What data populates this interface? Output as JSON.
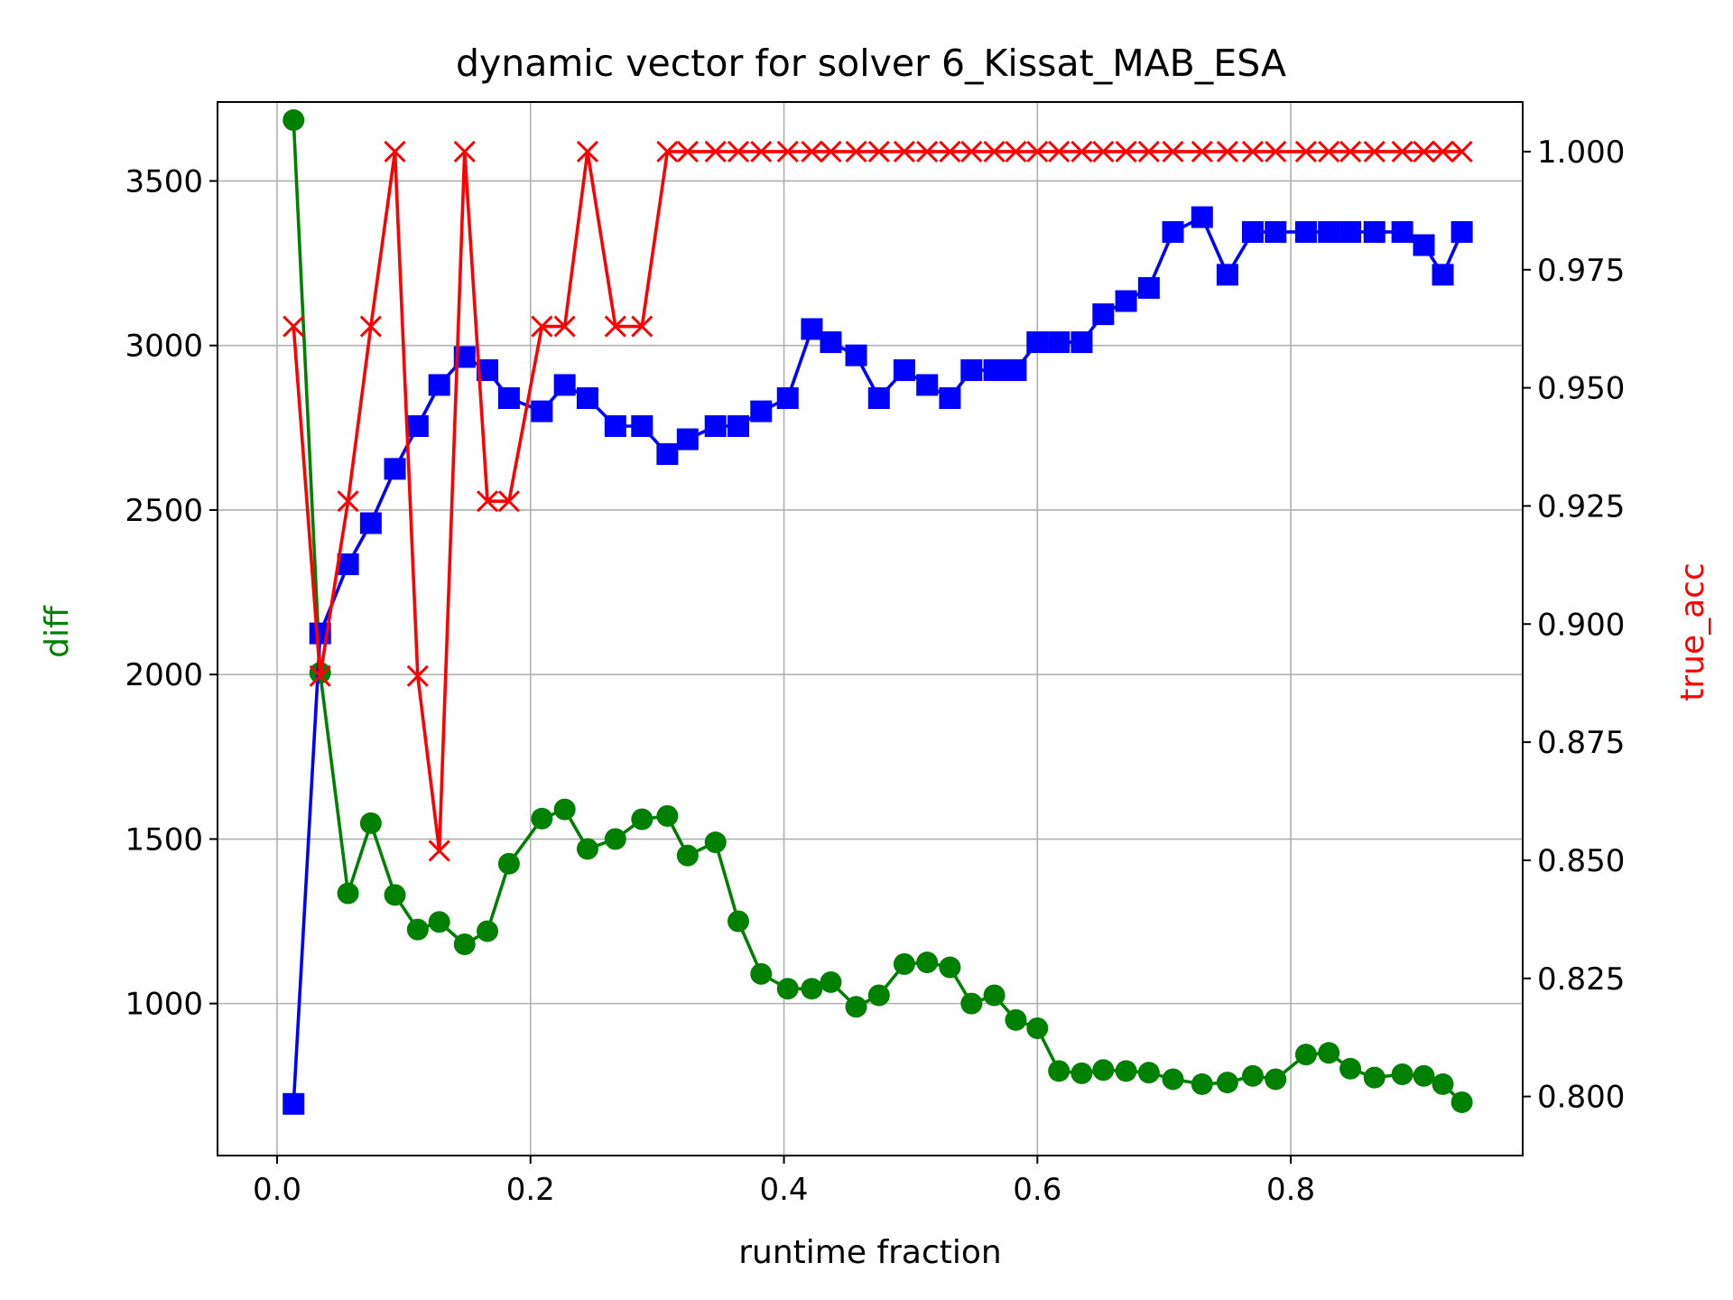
{
  "chart_data": {
    "type": "line",
    "title": "dynamic vector for solver 6_Kissat_MAB_ESA",
    "xlabel": "runtime fraction",
    "ylabel_left": "diff",
    "ylabel_right": "true_acc",
    "xlim": [
      -0.047,
      0.983
    ],
    "ylim_left": [
      538,
      3740
    ],
    "ylim_right": [
      0.7875,
      1.0105
    ],
    "x_ticks": [
      0.0,
      0.2,
      0.4,
      0.6,
      0.8
    ],
    "x_tick_labels": [
      "0.0",
      "0.2",
      "0.4",
      "0.6",
      "0.8"
    ],
    "y_left_ticks": [
      1000,
      1500,
      2000,
      2500,
      3000,
      3500
    ],
    "y_left_tick_labels": [
      "1000",
      "1500",
      "2000",
      "2500",
      "3000",
      "3500"
    ],
    "y_right_ticks": [
      0.8,
      0.825,
      0.85,
      0.875,
      0.9,
      0.925,
      0.95,
      0.975,
      1.0
    ],
    "y_right_tick_labels": [
      "0.800",
      "0.825",
      "0.850",
      "0.875",
      "0.900",
      "0.925",
      "0.950",
      "0.975",
      "1.000"
    ],
    "grid": true,
    "colors": {
      "green": "#008000",
      "blue": "#0000ff",
      "red": "#ff0000",
      "grid": "#b0b0b0"
    },
    "series": [
      {
        "axis": "left",
        "color": "#008000",
        "marker": "circle",
        "x": [
          0.013,
          0.034,
          0.056,
          0.074,
          0.093,
          0.111,
          0.128,
          0.148,
          0.166,
          0.183,
          0.209,
          0.227,
          0.245,
          0.267,
          0.288,
          0.308,
          0.324,
          0.346,
          0.364,
          0.382,
          0.403,
          0.422,
          0.437,
          0.457,
          0.475,
          0.495,
          0.513,
          0.531,
          0.548,
          0.566,
          0.583,
          0.6,
          0.617,
          0.635,
          0.652,
          0.67,
          0.688,
          0.707,
          0.73,
          0.75,
          0.77,
          0.788,
          0.812,
          0.83,
          0.847,
          0.866,
          0.888,
          0.905,
          0.92,
          0.935
        ],
        "y": [
          3685,
          2005,
          1335,
          1548,
          1330,
          1225,
          1248,
          1180,
          1220,
          1425,
          1562,
          1590,
          1470,
          1500,
          1560,
          1570,
          1450,
          1490,
          1250,
          1090,
          1045,
          1045,
          1065,
          990,
          1025,
          1120,
          1125,
          1110,
          1000,
          1025,
          950,
          925,
          795,
          788,
          798,
          795,
          790,
          770,
          755,
          760,
          780,
          770,
          845,
          850,
          802,
          775,
          785,
          780,
          755,
          700
        ]
      },
      {
        "axis": "left",
        "color": "#0000ff",
        "marker": "square",
        "x": [
          0.013,
          0.034,
          0.056,
          0.074,
          0.093,
          0.111,
          0.128,
          0.148,
          0.166,
          0.183,
          0.209,
          0.227,
          0.245,
          0.267,
          0.288,
          0.308,
          0.324,
          0.346,
          0.364,
          0.382,
          0.403,
          0.422,
          0.437,
          0.457,
          0.475,
          0.495,
          0.513,
          0.531,
          0.548,
          0.566,
          0.583,
          0.6,
          0.617,
          0.635,
          0.652,
          0.67,
          0.688,
          0.707,
          0.73,
          0.75,
          0.77,
          0.788,
          0.812,
          0.83,
          0.847,
          0.866,
          0.888,
          0.905,
          0.92,
          0.935
        ],
        "y": [
          695,
          2125,
          2335,
          2460,
          2625,
          2755,
          2880,
          2965,
          2925,
          2840,
          2800,
          2880,
          2840,
          2755,
          2755,
          2670,
          2715,
          2755,
          2755,
          2800,
          2840,
          3050,
          3010,
          2970,
          2840,
          2925,
          2880,
          2840,
          2925,
          2925,
          2925,
          3010,
          3010,
          3010,
          3095,
          3135,
          3175,
          3345,
          3390,
          3215,
          3345,
          3345,
          3345,
          3345,
          3345,
          3345,
          3345,
          3305,
          3215,
          3345
        ]
      },
      {
        "axis": "right",
        "color": "#ff0000",
        "marker": "x",
        "x": [
          0.013,
          0.034,
          0.056,
          0.074,
          0.093,
          0.111,
          0.128,
          0.148,
          0.166,
          0.183,
          0.209,
          0.227,
          0.245,
          0.267,
          0.288,
          0.308,
          0.324,
          0.346,
          0.364,
          0.382,
          0.403,
          0.422,
          0.437,
          0.457,
          0.475,
          0.495,
          0.513,
          0.531,
          0.548,
          0.566,
          0.583,
          0.6,
          0.617,
          0.635,
          0.652,
          0.67,
          0.688,
          0.707,
          0.73,
          0.75,
          0.77,
          0.788,
          0.812,
          0.83,
          0.847,
          0.866,
          0.888,
          0.905,
          0.92,
          0.935
        ],
        "y": [
          0.963,
          0.889,
          0.926,
          0.963,
          1.0,
          0.889,
          0.852,
          1.0,
          0.926,
          0.926,
          0.963,
          0.963,
          1.0,
          0.963,
          0.963,
          1.0,
          1.0,
          1.0,
          1.0,
          1.0,
          1.0,
          1.0,
          1.0,
          1.0,
          1.0,
          1.0,
          1.0,
          1.0,
          1.0,
          1.0,
          1.0,
          1.0,
          1.0,
          1.0,
          1.0,
          1.0,
          1.0,
          1.0,
          1.0,
          1.0,
          1.0,
          1.0,
          1.0,
          1.0,
          1.0,
          1.0,
          1.0,
          1.0,
          1.0,
          1.0
        ]
      }
    ]
  }
}
